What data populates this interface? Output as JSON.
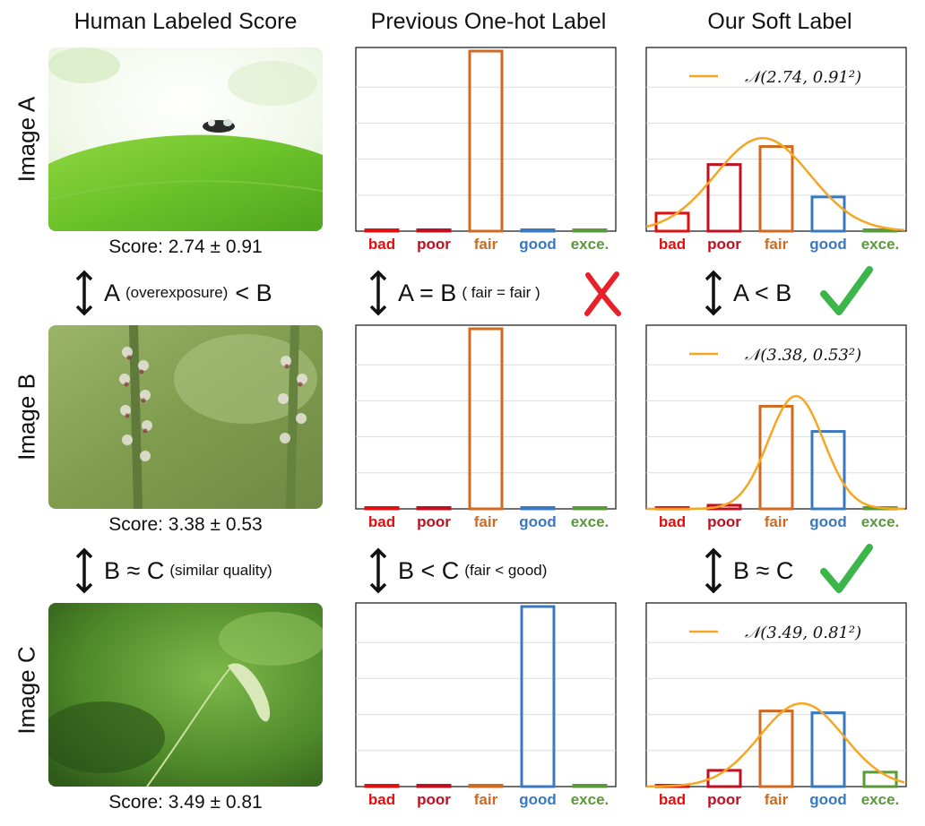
{
  "headers": {
    "col1": "Human Labeled Score",
    "col2": "Previous One-hot Label",
    "col3": "Our Soft Label"
  },
  "rows": [
    {
      "label": "Image A",
      "score": "Score: 2.74 ± 0.91"
    },
    {
      "label": "Image B",
      "score": "Score: 3.38 ± 0.53"
    },
    {
      "label": "Image C",
      "score": "Score: 3.49 ± 0.81"
    }
  ],
  "comparisons": {
    "human_ab": {
      "main_a": "A",
      "note": "(overexposure)",
      "main_b": "< B"
    },
    "human_bc": {
      "main": "B ≈ C",
      "note": "(similar quality)"
    },
    "onehot_ab": {
      "main": "A = B",
      "note": "( fair = fair )",
      "verdict": "wrong"
    },
    "onehot_bc": {
      "main": "B < C",
      "note": "(fair < good)"
    },
    "soft_ab": {
      "main": "A < B",
      "verdict": "correct"
    },
    "soft_bc": {
      "main": "B ≈ C",
      "verdict": "correct"
    }
  },
  "colors": {
    "bad": "#e01010",
    "poor": "#c01020",
    "fair": "#d06a20",
    "good": "#3a78c0",
    "exce": "#5a9a3a",
    "curve": "#f5a623",
    "cross": "#e8202a",
    "check": "#3cb54a"
  },
  "chart_data": [
    {
      "type": "bar",
      "name": "one-hot A",
      "categories": [
        "bad",
        "poor",
        "fair",
        "good",
        "exce."
      ],
      "values": [
        0,
        0,
        1,
        0,
        0
      ],
      "ylim": [
        0,
        1.02
      ],
      "grid": true
    },
    {
      "type": "bar",
      "name": "soft A",
      "categories": [
        "bad",
        "poor",
        "fair",
        "good",
        "exce."
      ],
      "values": [
        0.1,
        0.37,
        0.47,
        0.19,
        0
      ],
      "ylim": [
        0,
        1.02
      ],
      "grid": true,
      "curve": {
        "label": "𝒩(2.74, 0.91²)",
        "mu": 2.74,
        "sigma": 0.91
      }
    },
    {
      "type": "bar",
      "name": "one-hot B",
      "categories": [
        "bad",
        "poor",
        "fair",
        "good",
        "exce."
      ],
      "values": [
        0,
        0,
        1,
        0,
        0
      ],
      "ylim": [
        0,
        1.02
      ],
      "grid": true
    },
    {
      "type": "bar",
      "name": "soft B",
      "categories": [
        "bad",
        "poor",
        "fair",
        "good",
        "exce."
      ],
      "values": [
        0,
        0.02,
        0.57,
        0.43,
        0
      ],
      "ylim": [
        0,
        1.02
      ],
      "grid": true,
      "curve": {
        "label": "𝒩(3.38, 0.53²)",
        "mu": 3.38,
        "sigma": 0.53
      }
    },
    {
      "type": "bar",
      "name": "one-hot C",
      "categories": [
        "bad",
        "poor",
        "fair",
        "good",
        "exce."
      ],
      "values": [
        0,
        0,
        0,
        1,
        0
      ],
      "ylim": [
        0,
        1.02
      ],
      "grid": true
    },
    {
      "type": "bar",
      "name": "soft C",
      "categories": [
        "bad",
        "poor",
        "fair",
        "good",
        "exce."
      ],
      "values": [
        0,
        0.09,
        0.42,
        0.41,
        0.08
      ],
      "ylim": [
        0,
        1.02
      ],
      "grid": true,
      "curve": {
        "label": "𝒩(3.49, 0.81²)",
        "mu": 3.49,
        "sigma": 0.81
      }
    }
  ]
}
